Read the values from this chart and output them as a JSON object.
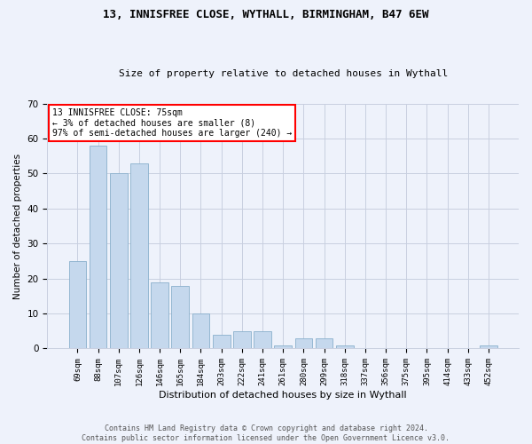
{
  "title1": "13, INNISFREE CLOSE, WYTHALL, BIRMINGHAM, B47 6EW",
  "title2": "Size of property relative to detached houses in Wythall",
  "xlabel": "Distribution of detached houses by size in Wythall",
  "ylabel": "Number of detached properties",
  "categories": [
    "69sqm",
    "88sqm",
    "107sqm",
    "126sqm",
    "146sqm",
    "165sqm",
    "184sqm",
    "203sqm",
    "222sqm",
    "241sqm",
    "261sqm",
    "280sqm",
    "299sqm",
    "318sqm",
    "337sqm",
    "356sqm",
    "375sqm",
    "395sqm",
    "414sqm",
    "433sqm",
    "452sqm"
  ],
  "values": [
    25,
    58,
    50,
    53,
    19,
    18,
    10,
    4,
    5,
    5,
    1,
    3,
    3,
    1,
    0,
    0,
    0,
    0,
    0,
    0,
    1
  ],
  "bar_color": "#c5d8ed",
  "bar_edge_color": "#8ab0cc",
  "ylim": [
    0,
    70
  ],
  "yticks": [
    0,
    10,
    20,
    30,
    40,
    50,
    60,
    70
  ],
  "annotation_box_text": "13 INNISFREE CLOSE: 75sqm\n← 3% of detached houses are smaller (8)\n97% of semi-detached houses are larger (240) →",
  "footer_line1": "Contains HM Land Registry data © Crown copyright and database right 2024.",
  "footer_line2": "Contains public sector information licensed under the Open Government Licence v3.0.",
  "bg_color": "#eef2fb",
  "plot_bg_color": "#eef2fb",
  "grid_color": "#c8cfe0"
}
